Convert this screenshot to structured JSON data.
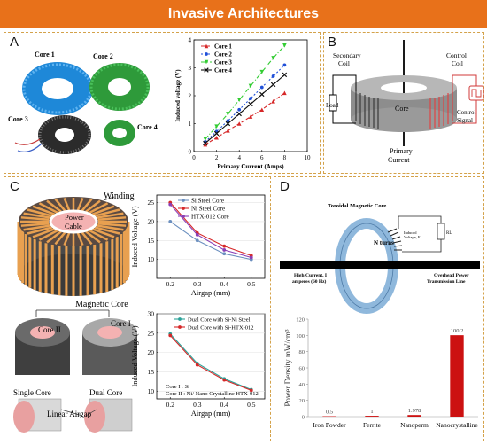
{
  "header": {
    "title": "Invasive Architectures"
  },
  "panels": {
    "a": {
      "label": "A",
      "photo_labels": [
        "Core 1",
        "Core 2",
        "Core 3",
        "Core 4"
      ],
      "colors": {
        "core1": "#d62728",
        "core2": "#1f4fd8",
        "core3": "#33cc33",
        "core4": "#111111"
      }
    },
    "b": {
      "label": "B",
      "labels": {
        "secondary": [
          "Secondary",
          "Coil"
        ],
        "control": [
          "Control",
          "Coil"
        ],
        "load": "Load",
        "core": "Core",
        "control_signal": [
          "Control",
          "Signal"
        ],
        "primary": [
          "Primary",
          "Current"
        ]
      }
    },
    "c": {
      "label": "C",
      "labels": {
        "winding": "Winding",
        "power_cable": [
          "Power",
          "Cable"
        ],
        "magnetic_core": "Magnetic Core",
        "core2": "Core II",
        "core1": "Core I",
        "single": "Single Core",
        "dual": "Dual Core",
        "airgap": "Linear Airgap",
        "core_note_1": "Core I : Si",
        "core_note_2": "Core II : Ni/ Nano Crystalline HTX-012"
      }
    },
    "d": {
      "label": "D",
      "labels": {
        "toroid": "Toroidal Magnetic Core",
        "n_turns": "N turns",
        "induced": [
          "Induced",
          "Voltage, E"
        ],
        "rl": "RL",
        "high_current": [
          "High Current, I",
          "amperes (60 Hz)"
        ],
        "overhead": [
          "Overhead Power",
          "Transmission Line"
        ]
      }
    }
  },
  "chart_data": [
    {
      "id": "induced-vs-primary",
      "type": "line",
      "xlabel": "Primary Current (Amps)",
      "ylabel": "Induced voltage (V)",
      "xlim": [
        0,
        10
      ],
      "ylim": [
        0,
        4
      ],
      "xticks": [
        0,
        2,
        4,
        6,
        8,
        10
      ],
      "yticks": [
        0,
        1,
        2,
        3,
        4
      ],
      "legend": "top-left",
      "x": [
        1,
        2,
        3,
        4,
        5,
        6,
        7,
        8
      ],
      "series": [
        {
          "name": "Core 1",
          "color": "#d62728",
          "marker": "triangle",
          "dash": "4 2",
          "values": [
            0.25,
            0.5,
            0.75,
            1.0,
            1.25,
            1.5,
            1.8,
            2.1
          ]
        },
        {
          "name": "Core 2",
          "color": "#1f4fd8",
          "marker": "circle",
          "dash": "2 2",
          "values": [
            0.35,
            0.72,
            1.1,
            1.5,
            1.9,
            2.3,
            2.7,
            3.1
          ]
        },
        {
          "name": "Core 3",
          "color": "#33cc33",
          "marker": "triangle-down",
          "dash": "5 2 1 2",
          "values": [
            0.45,
            0.9,
            1.35,
            1.85,
            2.35,
            2.85,
            3.35,
            3.8
          ]
        },
        {
          "name": "Core 4",
          "color": "#111111",
          "marker": "x",
          "dash": "",
          "values": [
            0.3,
            0.65,
            1.0,
            1.35,
            1.7,
            2.05,
            2.4,
            2.75
          ]
        }
      ]
    },
    {
      "id": "airgap-top",
      "type": "line",
      "xlabel": "Airgap (mm)",
      "ylabel": "Induced Voltage (V)",
      "xlim": [
        0.15,
        0.55
      ],
      "ylim": [
        5,
        27
      ],
      "xticks": [
        0.2,
        0.3,
        0.4,
        0.5
      ],
      "yticks": [
        10,
        15,
        20,
        25
      ],
      "legend": "top-right",
      "x": [
        0.2,
        0.3,
        0.4,
        0.5
      ],
      "series": [
        {
          "name": "Si Steel Core",
          "color": "#6b8fbf",
          "marker": "circle",
          "values": [
            20,
            15,
            11.5,
            10
          ]
        },
        {
          "name": "Ni Steel Core",
          "color": "#d62728",
          "marker": "circle",
          "values": [
            25,
            17,
            13.5,
            11
          ]
        },
        {
          "name": "HTX-012 Core",
          "color": "#8a3fb5",
          "marker": "circle",
          "values": [
            24.5,
            16.5,
            12.5,
            10.5
          ]
        }
      ]
    },
    {
      "id": "airgap-bottom",
      "type": "line",
      "xlabel": "Airgap (mm)",
      "ylabel": "Induced Voltage (V)",
      "xlim": [
        0.15,
        0.55
      ],
      "ylim": [
        8,
        30
      ],
      "xticks": [
        0.2,
        0.3,
        0.4,
        0.5
      ],
      "yticks": [
        10,
        15,
        20,
        25,
        30
      ],
      "legend": "top-right",
      "x": [
        0.2,
        0.3,
        0.4,
        0.5
      ],
      "series": [
        {
          "name": "Dual Core with Si-Ni Steel",
          "color": "#2aa198",
          "marker": "circle",
          "values": [
            24.8,
            17.2,
            13.2,
            10.4
          ]
        },
        {
          "name": "Dual Core with Si-HTX-012",
          "color": "#d62728",
          "marker": "circle",
          "values": [
            24.4,
            16.8,
            12.9,
            10.2
          ]
        }
      ]
    },
    {
      "id": "power-density",
      "type": "bar",
      "ylabel": "Power Density mW/cm³",
      "ylim": [
        0,
        120
      ],
      "yticks": [
        0,
        20,
        40,
        60,
        80,
        100,
        120
      ],
      "categories": [
        "Iron Powder",
        "Ferrite",
        "Nanoperm",
        "Nanocrystalline"
      ],
      "values": [
        0.5,
        1,
        1.978,
        100.2
      ],
      "value_labels": [
        "0.5",
        "1",
        "1.978",
        "100.2"
      ],
      "bar_color": "#cc1111"
    }
  ]
}
